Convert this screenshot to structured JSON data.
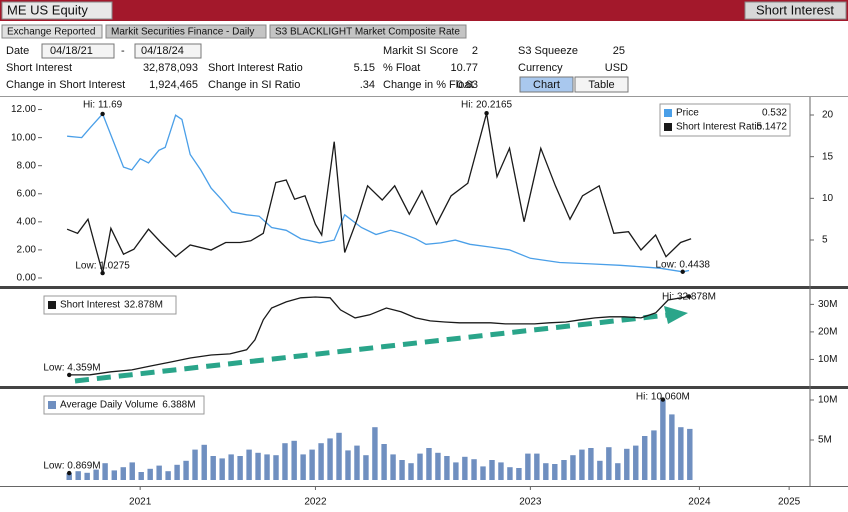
{
  "header": {
    "ticker": "ME US Equity",
    "function": "Short Interest"
  },
  "tabs": [
    "Exchange Reported",
    "Markit Securities Finance - Daily",
    "S3 BLACKLIGHT Market Composite Rate"
  ],
  "date": {
    "label": "Date",
    "from": "04/18/21",
    "separator": "-",
    "to": "04/18/24"
  },
  "fields": [
    {
      "label": "Short Interest",
      "value": "32,878,093"
    },
    {
      "label": "Change in Short Interest",
      "value": "1,924,465",
      "value_color": "#1a8a3a"
    },
    {
      "label": "Markit SI Score",
      "value": "2"
    },
    {
      "label": "Short Interest Ratio",
      "value": "5.15"
    },
    {
      "label": "Change in SI Ratio",
      "value": ".34",
      "value_color": "#1a8a3a"
    },
    {
      "label": "% Float",
      "value": "10.77"
    },
    {
      "label": "Change in % Float",
      "value": "0.63",
      "value_color": "#1a8a3a"
    },
    {
      "label": "S3 Squeeze",
      "value": "25"
    },
    {
      "label": "Currency",
      "value": "USD"
    }
  ],
  "buttons": [
    "Chart",
    "Table"
  ],
  "chart_data": [
    {
      "type": "line",
      "legend": "upper right",
      "xlim": [
        2021.18,
        2024.87
      ],
      "ylim": [
        -0.5,
        12.68
      ],
      "yticks": [
        {
          "value": 0,
          "label": "0.00"
        },
        {
          "value": 2,
          "label": "2.00"
        },
        {
          "value": 4,
          "label": "4.00"
        },
        {
          "value": 6,
          "label": "6.00"
        },
        {
          "value": 8,
          "label": "8.00"
        },
        {
          "value": 10,
          "label": "10.00"
        },
        {
          "value": 12,
          "label": "12.00"
        }
      ],
      "ytick_color": "#3a8fe0",
      "y2lim": [
        -0.4,
        21.8
      ],
      "y2ticks": [
        5,
        10,
        15,
        20
      ],
      "series": [
        {
          "name": "Price",
          "color": "#4a9fe8",
          "legend_value": "0.532",
          "hi_label": "Hi: 11.69",
          "low_label": "Low: 0.4438",
          "x": [
            2021.31,
            2021.38,
            2021.42,
            2021.48,
            2021.53,
            2021.58,
            2021.62,
            2021.66,
            2021.7,
            2021.75,
            2021.78,
            2021.83,
            2021.86,
            2021.9,
            2021.95,
            2022.0,
            2022.05,
            2022.1,
            2022.17,
            2022.23,
            2022.29,
            2022.36,
            2022.43,
            2022.52,
            2022.59,
            2022.64,
            2022.72,
            2022.79,
            2022.86,
            2022.91,
            2022.98,
            2023.03,
            2023.1,
            2023.17,
            2023.24,
            2023.34,
            2023.43,
            2023.53,
            2023.67,
            2023.82,
            2023.96,
            2024.06,
            2024.15,
            2024.26,
            2024.29
          ],
          "values": [
            10.1,
            10.0,
            10.7,
            11.69,
            9.8,
            7.9,
            7.7,
            8.5,
            8.2,
            9.1,
            9.3,
            11.6,
            11.3,
            8.8,
            7.7,
            6.4,
            5.6,
            4.7,
            4.5,
            4.4,
            3.6,
            3.4,
            2.8,
            2.5,
            2.7,
            4.5,
            3.6,
            3.1,
            3.4,
            3.2,
            2.8,
            2.4,
            2.5,
            2.7,
            2.4,
            2.2,
            2.0,
            1.4,
            1.1,
            1.0,
            0.9,
            0.8,
            0.7,
            0.4438,
            0.532
          ]
        },
        {
          "name": "Short Interest Ratio",
          "color": "#1a1a1a",
          "axis": "y2",
          "legend_value": "5.1472",
          "hi_label": "Hi: 20.2165",
          "low_label": "Low: 1.0275",
          "x": [
            2021.31,
            2021.36,
            2021.41,
            2021.45,
            2021.48,
            2021.52,
            2021.58,
            2021.63,
            2021.7,
            2021.76,
            2021.83,
            2021.9,
            2022.0,
            2022.07,
            2022.14,
            2022.19,
            2022.25,
            2022.31,
            2022.36,
            2022.4,
            2022.45,
            2022.5,
            2022.53,
            2022.59,
            2022.64,
            2022.7,
            2022.75,
            2022.82,
            2022.88,
            2022.95,
            2023.01,
            2023.08,
            2023.15,
            2023.23,
            2023.32,
            2023.37,
            2023.43,
            2023.5,
            2023.58,
            2023.65,
            2023.72,
            2023.78,
            2023.86,
            2023.93,
            2024.0,
            2024.06,
            2024.13,
            2024.18,
            2024.25,
            2024.3
          ],
          "values": [
            6.3,
            5.8,
            7.5,
            3.8,
            1.0275,
            6.4,
            3.3,
            3.9,
            6.3,
            4.7,
            3.0,
            4.4,
            3.8,
            4.7,
            4.7,
            4.9,
            5.8,
            11.9,
            12.2,
            9.9,
            10.3,
            6.9,
            5.6,
            16.8,
            3.5,
            7.5,
            11.5,
            9.8,
            11.5,
            8.1,
            10.9,
            6.9,
            10.3,
            11.8,
            20.2165,
            12.6,
            16.0,
            7.2,
            16.0,
            11.5,
            7.5,
            10.3,
            11.5,
            5.8,
            6.0,
            3.8,
            5.6,
            3.0,
            4.7,
            5.1472
          ]
        }
      ]
    },
    {
      "type": "line",
      "legend": "upper left",
      "xlim": [
        2021.18,
        2024.87
      ],
      "ytick_side": "right",
      "ylim": [
        0.7,
        34.5
      ],
      "yticks": [
        {
          "value": 10,
          "label": "10M"
        },
        {
          "value": 20,
          "label": "20M"
        },
        {
          "value": 30,
          "label": "30M"
        }
      ],
      "series": [
        {
          "name": "Short Interest",
          "color": "#1a1a1a",
          "legend_value": "32.878M",
          "hi_label": "Hi: 32.878M",
          "low_label": "Low: 4.359M",
          "x": [
            2021.32,
            2021.42,
            2021.52,
            2021.62,
            2021.71,
            2021.81,
            2021.9,
            2022.0,
            2022.09,
            2022.17,
            2022.21,
            2022.25,
            2022.29,
            2022.36,
            2022.43,
            2022.5,
            2022.57,
            2022.62,
            2022.69,
            2022.76,
            2022.84,
            2022.91,
            2022.98,
            2023.05,
            2023.12,
            2023.19,
            2023.27,
            2023.34,
            2023.41,
            2023.48,
            2023.55,
            2023.62,
            2023.7,
            2023.77,
            2023.84,
            2023.91,
            2023.98,
            2024.06,
            2024.13,
            2024.19,
            2024.29
          ],
          "values": [
            4.359,
            4.4,
            5.5,
            6.2,
            7.6,
            9.1,
            10.5,
            11.6,
            12.0,
            13.5,
            17.1,
            24.4,
            28.7,
            30.9,
            32.4,
            32.7,
            32.4,
            28.0,
            25.1,
            26.2,
            28.7,
            27.3,
            25.1,
            24.0,
            23.6,
            23.3,
            23.3,
            23.3,
            22.9,
            22.9,
            22.9,
            23.3,
            23.6,
            24.4,
            25.1,
            25.5,
            25.5,
            25.1,
            26.9,
            31.6,
            32.878
          ]
        }
      ]
    },
    {
      "type": "bar",
      "legend": "upper left",
      "xlim": [
        2021.18,
        2024.87
      ],
      "ytick_side": "right",
      "ylim": [
        0,
        11
      ],
      "yticks": [
        {
          "value": 5,
          "label": "5M"
        },
        {
          "value": 10,
          "label": "10M"
        }
      ],
      "xticks": [
        {
          "value": 2021.66,
          "label": "2021"
        },
        {
          "value": 2022.5,
          "label": "2022"
        },
        {
          "value": 2023.53,
          "label": "2023"
        },
        {
          "value": 2024.34,
          "label": "2024"
        },
        {
          "value": 2024.77,
          "label": "2025"
        }
      ],
      "series": [
        {
          "name": "Average Daily Volume",
          "color": "#6f8fc0",
          "legend_value": "6.388M",
          "hi_label": "Hi: 10.060M",
          "low_label": "Low: 0.869M",
          "x": [
            2021.32,
            2021.363,
            2021.406,
            2021.449,
            2021.492,
            2021.536,
            2021.579,
            2021.622,
            2021.665,
            2021.708,
            2021.751,
            2021.794,
            2021.837,
            2021.88,
            2021.923,
            2021.967,
            2022.01,
            2022.053,
            2022.096,
            2022.139,
            2022.182,
            2022.225,
            2022.268,
            2022.311,
            2022.354,
            2022.398,
            2022.441,
            2022.484,
            2022.527,
            2022.57,
            2022.613,
            2022.656,
            2022.699,
            2022.742,
            2022.785,
            2022.829,
            2022.872,
            2022.915,
            2022.958,
            2023.001,
            2023.044,
            2023.087,
            2023.13,
            2023.173,
            2023.216,
            2023.26,
            2023.303,
            2023.346,
            2023.389,
            2023.432,
            2023.475,
            2023.518,
            2023.561,
            2023.604,
            2023.647,
            2023.691,
            2023.734,
            2023.777,
            2023.82,
            2023.863,
            2023.906,
            2023.949,
            2023.992,
            2024.035,
            2024.078,
            2024.122,
            2024.165,
            2024.208,
            2024.251,
            2024.294
          ],
          "values": [
            0.869,
            1.1,
            0.9,
            1.3,
            2.1,
            1.2,
            1.6,
            2.2,
            1.0,
            1.4,
            1.8,
            1.1,
            1.9,
            2.4,
            3.8,
            4.4,
            3.0,
            2.7,
            3.2,
            3.0,
            3.8,
            3.4,
            3.2,
            3.1,
            4.6,
            4.9,
            3.2,
            3.8,
            4.6,
            5.2,
            5.9,
            3.7,
            4.3,
            3.1,
            6.6,
            4.5,
            3.2,
            2.5,
            2.1,
            3.3,
            4.0,
            3.4,
            3.0,
            2.2,
            2.9,
            2.6,
            1.7,
            2.5,
            2.2,
            1.6,
            1.5,
            3.3,
            3.3,
            2.1,
            2.0,
            2.5,
            3.1,
            3.8,
            4.0,
            2.4,
            4.1,
            2.1,
            3.9,
            4.3,
            5.5,
            6.2,
            10.06,
            8.2,
            6.6,
            6.388
          ]
        }
      ]
    }
  ]
}
